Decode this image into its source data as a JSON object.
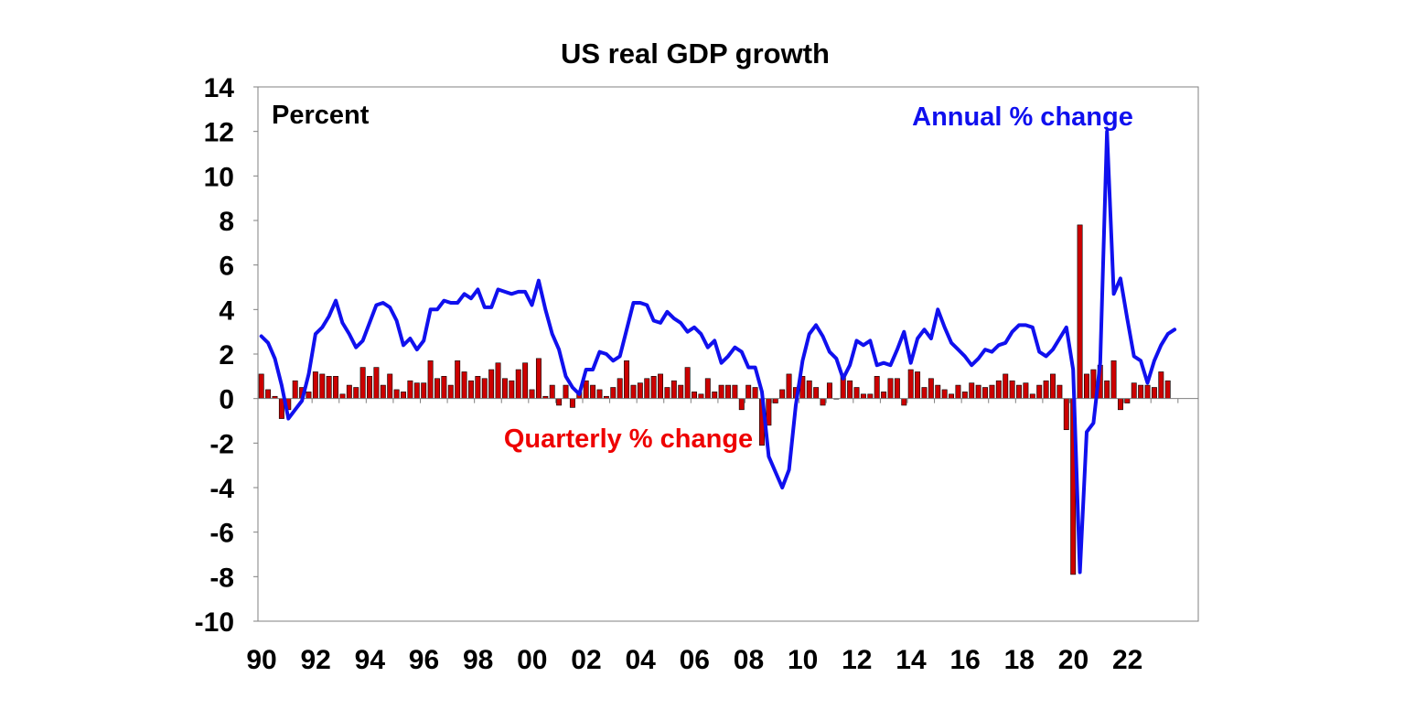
{
  "chart_data": {
    "type": "bar",
    "title": "US real GDP growth",
    "ylabel": "Percent",
    "xlabel": "",
    "ylim": [
      -10,
      14
    ],
    "yticks": [
      14,
      12,
      10,
      8,
      6,
      4,
      2,
      0,
      -2,
      -4,
      -6,
      -8,
      -10
    ],
    "xlim": [
      1990,
      2024.75
    ],
    "xtick_labels": [
      "90",
      "92",
      "94",
      "96",
      "98",
      "00",
      "02",
      "04",
      "06",
      "08",
      "10",
      "12",
      "14",
      "16",
      "18",
      "20",
      "22"
    ],
    "grid": false,
    "legend": [
      {
        "name": "Annual % change",
        "color": "#1010ee",
        "placement": "top-right"
      },
      {
        "name": "Quarterly % change",
        "color": "#ee0000",
        "placement": "below zero line, centre"
      }
    ],
    "series": [
      {
        "name": "Quarterly % change",
        "type": "bar",
        "color": "#cc0000",
        "start_year": 1990,
        "frequency": "quarterly",
        "values": [
          1.1,
          0.4,
          0.1,
          -0.9,
          -0.5,
          0.8,
          0.5,
          0.3,
          1.2,
          1.1,
          1.0,
          1.0,
          0.2,
          0.6,
          0.5,
          1.4,
          1.0,
          1.4,
          0.6,
          1.1,
          0.4,
          0.3,
          0.8,
          0.7,
          0.7,
          1.7,
          0.9,
          1.0,
          0.6,
          1.7,
          1.2,
          0.8,
          1.0,
          0.9,
          1.3,
          1.6,
          0.9,
          0.8,
          1.3,
          1.6,
          0.4,
          1.8,
          0.1,
          0.6,
          -0.3,
          0.6,
          -0.4,
          0.3,
          0.8,
          0.6,
          0.4,
          0.1,
          0.5,
          0.9,
          1.7,
          0.6,
          0.7,
          0.9,
          1.0,
          1.1,
          0.5,
          0.8,
          0.6,
          1.4,
          0.3,
          0.2,
          0.9,
          0.3,
          0.6,
          0.6,
          0.6,
          -0.5,
          0.6,
          0.5,
          -2.1,
          -1.2,
          -0.2,
          0.4,
          1.1,
          0.5,
          1.0,
          0.8,
          0.5,
          -0.3,
          0.7,
          0.0,
          1.1,
          0.8,
          0.5,
          0.2,
          0.2,
          1.0,
          0.3,
          0.9,
          0.9,
          -0.3,
          1.3,
          1.2,
          0.5,
          0.9,
          0.6,
          0.4,
          0.2,
          0.6,
          0.3,
          0.7,
          0.6,
          0.5,
          0.6,
          0.8,
          1.1,
          0.8,
          0.6,
          0.7,
          0.2,
          0.6,
          0.8,
          1.1,
          0.6,
          -1.4,
          -7.9,
          7.8,
          1.1,
          1.3,
          1.5,
          0.8,
          1.7,
          -0.5,
          -0.2,
          0.7,
          0.6,
          0.6,
          0.5,
          1.2,
          0.8
        ]
      },
      {
        "name": "Annual % change",
        "type": "line",
        "color": "#1010ee",
        "start_year": 1990,
        "frequency": "quarterly",
        "values": [
          2.8,
          2.5,
          1.8,
          0.6,
          -0.9,
          -0.5,
          -0.1,
          1.1,
          2.9,
          3.2,
          3.7,
          4.4,
          3.4,
          2.9,
          2.3,
          2.6,
          3.4,
          4.2,
          4.3,
          4.1,
          3.5,
          2.4,
          2.7,
          2.2,
          2.6,
          4.0,
          4.0,
          4.4,
          4.3,
          4.3,
          4.7,
          4.5,
          4.9,
          4.1,
          4.1,
          4.9,
          4.8,
          4.7,
          4.8,
          4.8,
          4.2,
          5.3,
          4.0,
          2.9,
          2.2,
          1.0,
          0.5,
          0.2,
          1.3,
          1.3,
          2.1,
          2.0,
          1.7,
          1.9,
          3.1,
          4.3,
          4.3,
          4.2,
          3.5,
          3.4,
          3.9,
          3.6,
          3.4,
          3.0,
          3.2,
          2.9,
          2.3,
          2.6,
          1.6,
          1.9,
          2.3,
          2.1,
          1.4,
          1.4,
          0.3,
          -2.6,
          -3.3,
          -4.0,
          -3.2,
          -0.3,
          1.7,
          2.9,
          3.3,
          2.8,
          2.1,
          1.8,
          0.9,
          1.5,
          2.6,
          2.4,
          2.6,
          1.5,
          1.6,
          1.5,
          2.2,
          3.0,
          1.6,
          2.7,
          3.1,
          2.7,
          4.0,
          3.2,
          2.5,
          2.2,
          1.9,
          1.5,
          1.8,
          2.2,
          2.1,
          2.4,
          2.5,
          3.0,
          3.3,
          3.3,
          3.2,
          2.1,
          1.9,
          2.2,
          2.7,
          3.2,
          1.3,
          -7.8,
          -1.5,
          -1.1,
          1.6,
          12.0,
          4.7,
          5.4,
          3.6,
          1.9,
          1.7,
          0.7,
          1.7,
          2.4,
          2.9,
          3.1
        ]
      }
    ]
  },
  "annotations": {
    "ylabel_text": "Percent",
    "annual_label": "Annual % change",
    "quarterly_label": "Quarterly % change"
  }
}
